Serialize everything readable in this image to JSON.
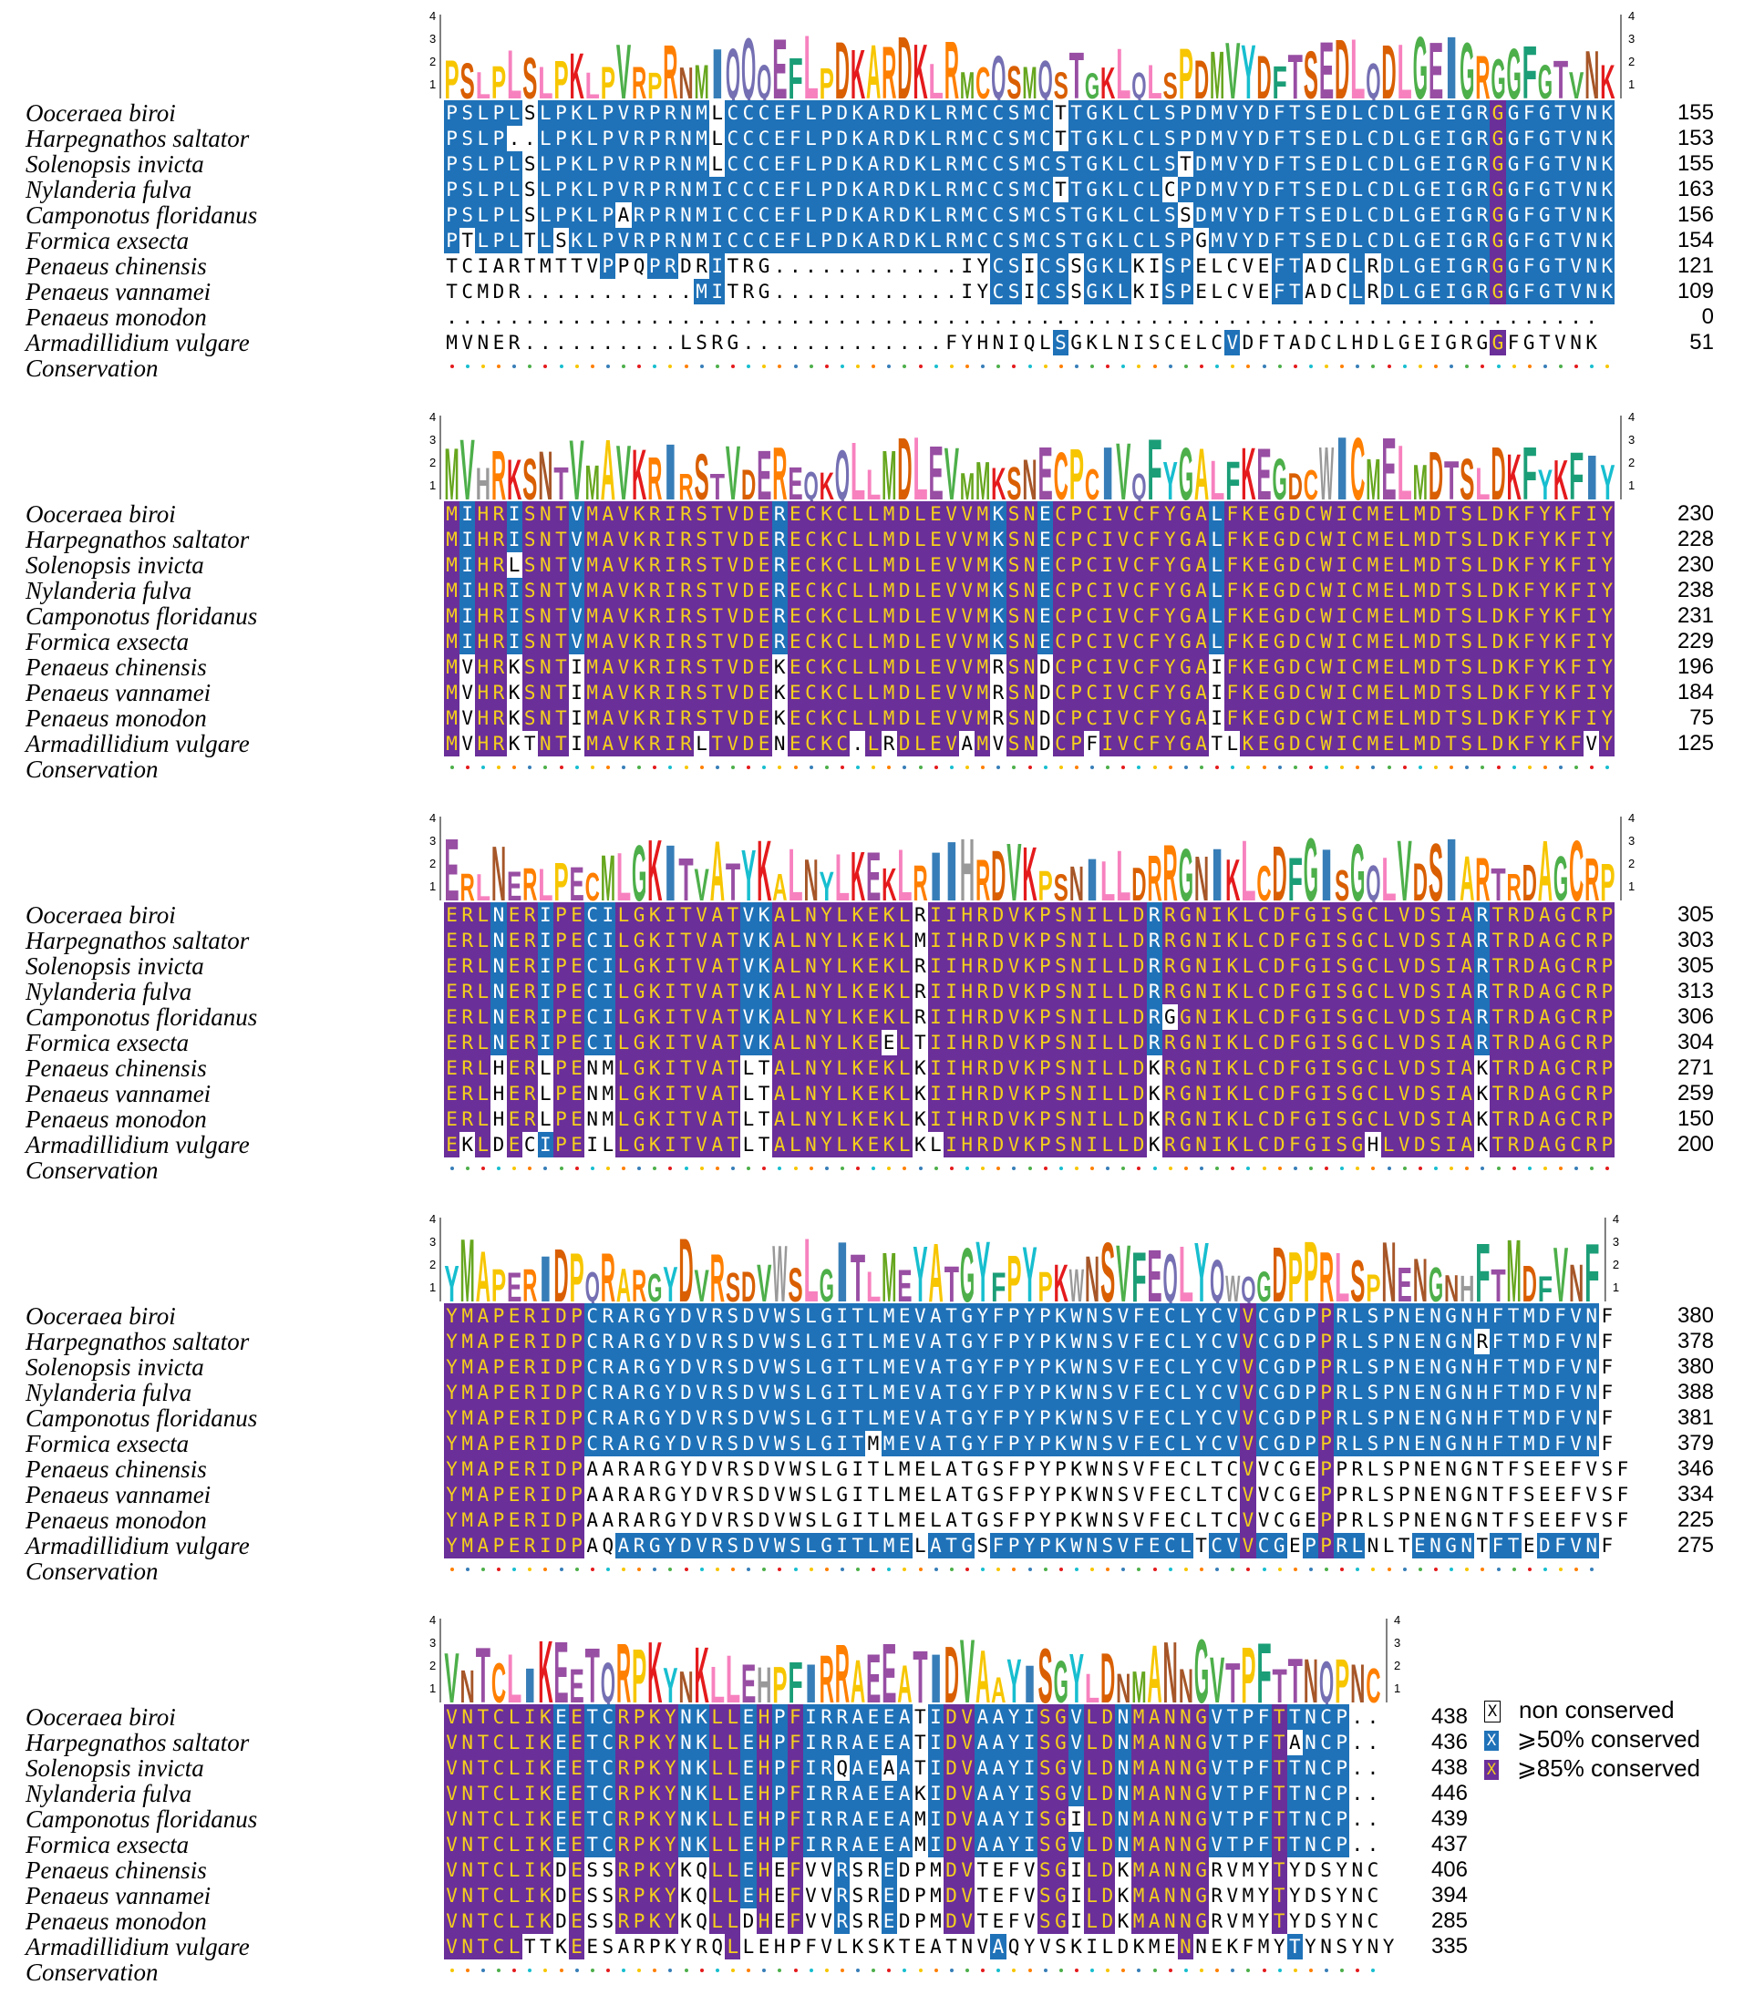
{
  "species": [
    "Ooceraea biroi",
    "Harpegnathos saltator",
    "Solenopsis invicta",
    "Nylanderia fulva",
    "Camponotus floridanus",
    "Formica exsecta",
    "Penaeus chinensis",
    "Penaeus vannamei",
    "Penaeus monodon",
    "Armadillidium vulgare",
    "Conservation"
  ],
  "logo_axis": [
    "4",
    "3",
    "2",
    "1"
  ],
  "colors": {
    "high": "#6a2f99",
    "mid": "#1f72b8",
    "highText": "#f5d01c",
    "midText": "#ffffff",
    "none": "#ffffff"
  },
  "blocks": [
    {
      "logo": "PSLPLSLPKLPVRPRNMIQQQEFLPDKARDKLRMCQSMQSTGKLQLSPDMVYDFTSEDLQDLGEIGRGGFGTVNK",
      "rows": [
        {
          "seq": "PSLPLSLPKLPVRPRNMLCCCEFLPDKARDKLRMCCSMCTTGKLCLSPDMVYDFTSEDLCDLGEIGRGGFGTVNK",
          "end": "155"
        },
        {
          "seq": "PSLP..LPKLPVRPRNMLCCCEFLPDKARDKLRMCCSMCTTGKLCLSPDMVYDFTSEDLCDLGEIGRGGFGTVNK",
          "end": "153"
        },
        {
          "seq": "PSLPLSLPKLPVRPRNMLCCCEFLPDKARDKLRMCCSMCSTGKLCLSTDMVYDFTSEDLCDLGEIGRGGFGTVNK",
          "end": "155"
        },
        {
          "seq": "PSLPLSLPKLPVRPRNMICCCEFLPDKARDKLRMCCSMCTTGKLCLCPDMVYDFTSEDLCDLGEIGRGGFGTVNK",
          "end": "163"
        },
        {
          "seq": "PSLPLSLPKLPARPRNMICCCEFLPDKARDKLRMCCSMCSTGKLCLSSDMVYDFTSEDLCDLGEIGRGGFGTVNK",
          "end": "156"
        },
        {
          "seq": "PTLPLTLSKLPVRPRNMICCCEFLPDKARDKLRMCCSMCSTGKLCLSPGMVYDFTSEDLCDLGEIGRGGFGTVNK",
          "end": "154"
        },
        {
          "seq": "TCIARTMTTVPPQPRDRITRG............IYCSICSSGKLKISPELCVEFTADCLRDLGEIGRGGFGTVNK",
          "end": "121"
        },
        {
          "seq": "TCMDR...........MITRG............IYCSICSSGKLKISPELCVEFTADCLRDLGEIGRGGFGTVNK",
          "end": "109"
        },
        {
          "seq": "..........................................................................",
          "end": "0"
        },
        {
          "seq": "MVNER..........LSRG.............FYHNIQLSGKLNISCELCVDFTADCLHDLGEIGRGGFGTVNK",
          "end": "51"
        }
      ]
    },
    {
      "logo": "MVHRKSNTVMAVKRIRSTVDEREQKQLLMDLEVMMKSNECPCIVQFYGALFKEGDCWICMELMDTSLDKFYKFIY",
      "rows": [
        {
          "seq": "MIHRISNTVMAVKRIRSTVDERECKCLLMDLEVVMKSNECPCIVCFYGALFKEGDCWICMELMDTSLDKFYKFIY",
          "end": "230"
        },
        {
          "seq": "MIHRISNTVMAVKRIRSTVDERECKCLLMDLEVVMKSNECPCIVCFYGALFKEGDCWICMELMDTSLDKFYKFIY",
          "end": "228"
        },
        {
          "seq": "MIHRLSNTVMAVKRIRSTVDERECKCLLMDLEVVMKSNECPCIVCFYGALFKEGDCWICMELMDTSLDKFYKFIY",
          "end": "230"
        },
        {
          "seq": "MIHRISNTVMAVKRIRSTVDERECKCLLMDLEVVMKSNECPCIVCFYGALFKEGDCWICMELMDTSLDKFYKFIY",
          "end": "238"
        },
        {
          "seq": "MIHRISNTVMAVKRIRSTVDERECKCLLMDLEVVMKSNECPCIVCFYGALFKEGDCWICMELMDTSLDKFYKFIY",
          "end": "231"
        },
        {
          "seq": "MIHRISNTVMAVKRIRSTVDERECKCLLMDLEVVMKSNECPCIVCFYGALFKEGDCWICMELMDTSLDKFYKFIY",
          "end": "229"
        },
        {
          "seq": "MVHRKSNTIMAVKRIRSTVDEKECKCLLMDLEVVMRSNDCPCIVCFYGAIFKEGDCWICMELMDTSLDKFYKFIY",
          "end": "196"
        },
        {
          "seq": "MVHRKSNTIMAVKRIRSTVDEKECKCLLMDLEVVMRSNDCPCIVCFYGAIFKEGDCWICMELMDTSLDKFYKFIY",
          "end": "184"
        },
        {
          "seq": "MVHRKSNTIMAVKRIRSTVDEKECKCLLMDLEVVMRSNDCPCIVCFYGAIFKEGDCWICMELMDTSLDKFYKFIY",
          "end": "75"
        },
        {
          "seq": "MVHRKTNTIMAVKRIRLTVDENECKC.LRDLEVAMVSNDCPFIVCFYGATLKEGDCWICMELMDTSLDKFYKFVY",
          "end": "125"
        }
      ]
    },
    {
      "logo": "ERLNERLPECMLGKITVATYKALNYLKEKLRIIHRDVKPSNILLDRRGNIKLCDFGISGQLVDSIARTRDAGCRP",
      "rows": [
        {
          "seq": "ERLNERIPECILGKITVATVKALNYLKEKLRIIHRDVKPSNILLDRRGNIKLCDFGISGCLVDSIARTRDAGCRP",
          "end": "305"
        },
        {
          "seq": "ERLNERIPECILGKITVATVKALNYLKEKLMIIHRDVKPSNILLDRRGNIKLCDFGISGCLVDSIARTRDAGCRP",
          "end": "303"
        },
        {
          "seq": "ERLNERIPECILGKITVATVKALNYLKEKLRIIHRDVKPSNILLDRRGNIKLCDFGISGCLVDSIARTRDAGCRP",
          "end": "305"
        },
        {
          "seq": "ERLNERIPECILGKITVATVKALNYLKEKLRIIHRDVKPSNILLDRRGNIKLCDFGISGCLVDSIARTRDAGCRP",
          "end": "313"
        },
        {
          "seq": "ERLNERIPECILGKITVATVKALNYLKEKLRIIHRDVKPSNILLDRGGNIKLCDFGISGCLVDSIARTRDAGCRP",
          "end": "306"
        },
        {
          "seq": "ERLNERIPECILGKITVATVKALNYLKEELTIIHRDVKPSNILLDRRGNIKLCDFGISGCLVDSIARTRDAGCRP",
          "end": "304"
        },
        {
          "seq": "ERLHERLPENMLGKITVATLTALNYLKEKLKIIHRDVKPSNILLDKRGNIKLCDFGISGCLVDSIAKTRDAGCRP",
          "end": "271"
        },
        {
          "seq": "ERLHERLPENMLGKITVATLTALNYLKEKLKIIHRDVKPSNILLDKRGNIKLCDFGISGCLVDSIAKTRDAGCRP",
          "end": "259"
        },
        {
          "seq": "ERLHERLPENMLGKITVATLTALNYLKEKLKIIHRDVKPSNILLDKRGNIKLCDFGISGCLVDSIAKTRDAGCRP",
          "end": "150"
        },
        {
          "seq": "EKLDECIPEILLGKITVATLTALNYLKEKLKLIHRDVKPSNILLDKRGNIKLCDFGISGHLVDSIAKTRDAGCRP",
          "end": "200"
        }
      ]
    },
    {
      "logo": "YMAPERIDPQRARGYDVRSDVWSLGITLMEYATGYFPYPKWNSVFEQLYQWQGDPPRLSPNENGNHFTMDFVNF",
      "rows": [
        {
          "seq": "YMAPERIDPCRARGYDVRSDVWSLGITLMEVATGYFPYPKWNSVFECLYCVVCGDPPRLSPNENGNHFTMDFVNF",
          "end": "380"
        },
        {
          "seq": "YMAPERIDPCRARGYDVRSDVWSLGITLMEVATGYFPYPKWNSVFECLYCVVCGDPPRLSPNENGNRFTMDFVNF",
          "end": "378"
        },
        {
          "seq": "YMAPERIDPCRARGYDVRSDVWSLGITLMEVATGYFPYPKWNSVFECLYCVVCGDPPRLSPNENGNHFTMDFVNF",
          "end": "380"
        },
        {
          "seq": "YMAPERIDPCRARGYDVRSDVWSLGITLMEVATGYFPYPKWNSVFECLYCVVCGDPPRLSPNENGNHFTMDFVNF",
          "end": "388"
        },
        {
          "seq": "YMAPERIDPCRARGYDVRSDVWSLGITLMEVATGYFPYPKWNSVFECLYCVVCGDPPRLSPNENGNHFTMDFVNF",
          "end": "381"
        },
        {
          "seq": "YMAPERIDPCRARGYDVRSDVWSLGITMMEVATGYFPYPKWNSVFECLYCVVCGDPPRLSPNENGNHFTMDFVNF",
          "end": "379"
        },
        {
          "seq": "YMAPERIDPAARARGYDVRSDVWSLGITLMELATGSFPYPKWNSVFECLTCVVCGEPPRLSPNENGNTFSEEFVSF",
          "end": "346"
        },
        {
          "seq": "YMAPERIDPAARARGYDVRSDVWSLGITLMELATGSFPYPKWNSVFECLTCVVCGEPPRLSPNENGNTFSEEFVSF",
          "end": "334"
        },
        {
          "seq": "YMAPERIDPAARARGYDVRSDVWSLGITLMELATGSFPYPKWNSVFECLTCVVCGEPPRLSPNENGNTFSEEFVSF",
          "end": "225"
        },
        {
          "seq": "YMAPERIDPAQARGYDVRSDVWSLGITLMELATGSFPYPKWNSVFECLTCVVCGEPPRLNLTENGNTFTEDFVNF",
          "end": "275"
        }
      ]
    },
    {
      "logo": "VNTCLIKEETQRPKYNKLLEHPFIRRAEEATIDVAAYISGYLDNMANNGVTPFTTNQPNC",
      "rows": [
        {
          "seq": "VNTCLIKEETCRPKYNKLLEHPFIRRAEEATIDVAAYISGVLDNMANNGVTPFTTNCP..",
          "end": "438"
        },
        {
          "seq": "VNTCLIKEETCRPKYNKLLEHPFIRRAEEATIDVAAYISGVLDNMANNGVTPFTANCP..",
          "end": "436"
        },
        {
          "seq": "VNTCLIKEETCRPKYNKLLEHPFIRQAEAATIDVAAYISGVLDNMANNGVTPFTTNCP..",
          "end": "438"
        },
        {
          "seq": "VNTCLIKEETCRPKYNKLLEHPFIRRAEEAKIDVAAYISGVLDNMANNGVTPFTTNCP..",
          "end": "446"
        },
        {
          "seq": "VNTCLIKEETCRPKYNKLLEHPFIRRAEEAMIDVAAYISGILDNMANNGVTPFTTNCP..",
          "end": "439"
        },
        {
          "seq": "VNTCLIKEETCRPKYNKLLEHPFIRRAEEAMIDVAAYISGVLDNMANNGVTPFTTNCP..",
          "end": "437"
        },
        {
          "seq": "VNTCLIKDESSRPKYKQLLEHEFVVRSREDPMDVTEFVSGILDKMANNGRVMYTYDSYNC",
          "end": "406"
        },
        {
          "seq": "VNTCLIKDESSRPKYKQLLEHEFVVRSREDPMDVTEFVSGILDKMANNGRVMYTYDSYNC",
          "end": "394"
        },
        {
          "seq": "VNTCLIKDESSRPKYKQLLDHEFVVRSREDPMDVTEFVSGILDKMANNGRVMYTYDSYNC",
          "end": "285"
        },
        {
          "seq": "VNTCLTTKEESARPKYRQLLEHPFVLKSKTEATNVAQYVSKILDKMENNEKFMYTYNSYNY",
          "end": "335"
        }
      ]
    }
  ],
  "legend": [
    {
      "box": "X",
      "label": "non  conserved",
      "kind": "none"
    },
    {
      "box": "X",
      "label": "⩾50%  conserved",
      "kind": "mid"
    },
    {
      "box": "X",
      "label": "⩾85%  conserved",
      "kind": "high"
    }
  ]
}
